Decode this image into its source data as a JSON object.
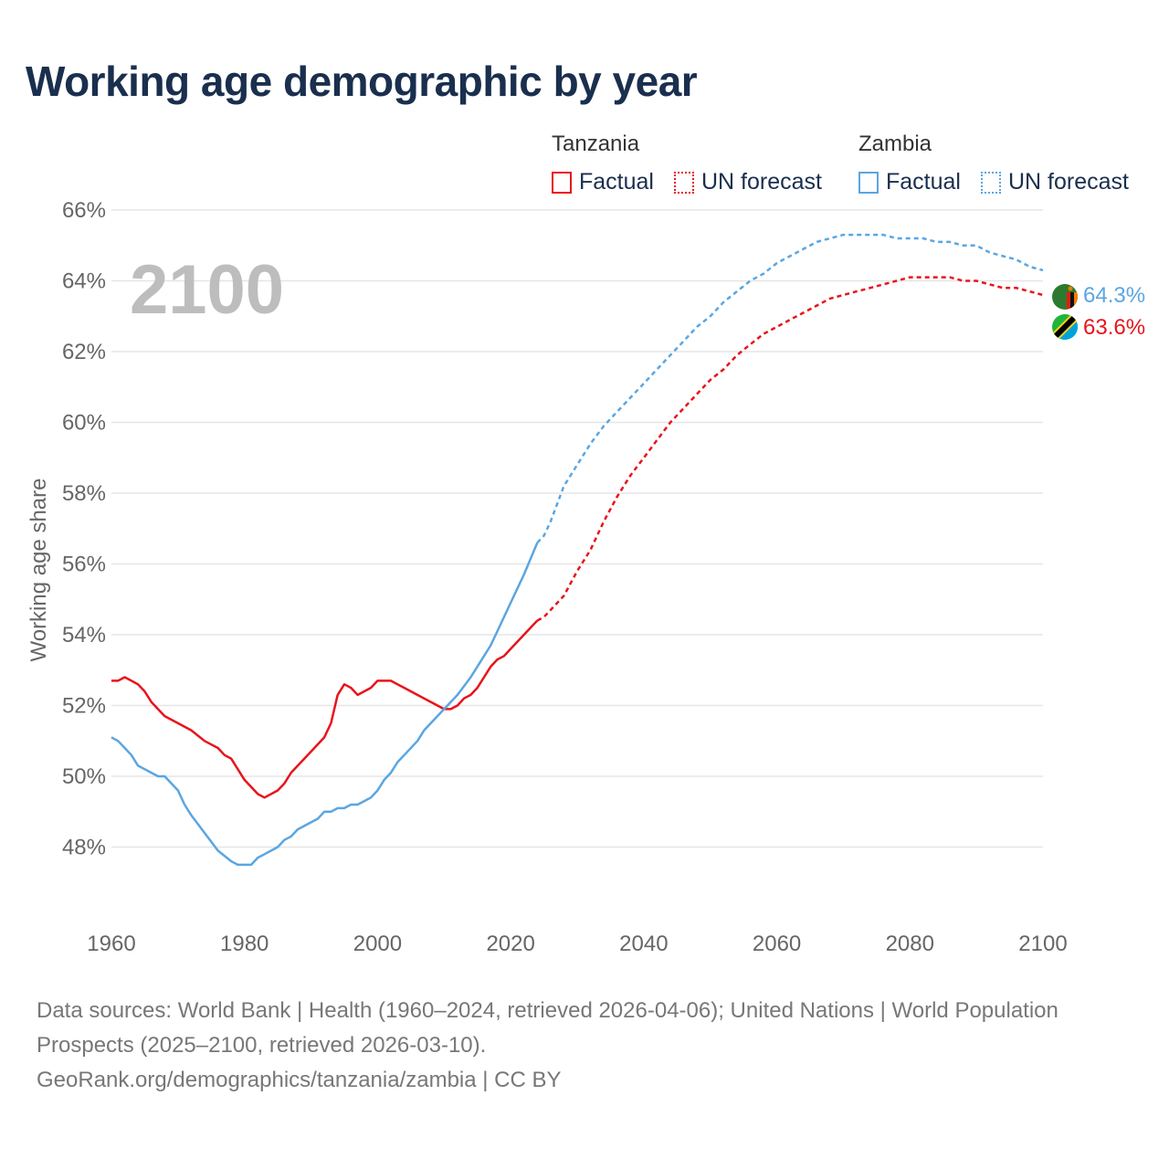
{
  "title": "Working age demographic by year",
  "legend": {
    "groups": [
      {
        "country": "Tanzania",
        "factual": "Factual",
        "forecast": "UN forecast",
        "color": "#e8141b"
      },
      {
        "country": "Zambia",
        "factual": "Factual",
        "forecast": "UN forecast",
        "color": "#5aa6e2"
      }
    ]
  },
  "footer": {
    "sources": "Data sources: World Bank | Health (1960–2024, retrieved 2026-04-06); United Nations | World Population Prospects (2025–2100, retrieved 2026-03-10).",
    "credit": "GeoRank.org/demographics/tanzania/zambia | CC BY"
  },
  "chart_data": {
    "type": "line",
    "title": "Working age demographic by year",
    "xlabel": "",
    "ylabel": "Working age share",
    "year_label": "2100",
    "xlim": [
      1960,
      2100
    ],
    "ylim": [
      46,
      66
    ],
    "x_ticks": [
      "1960",
      "1980",
      "2000",
      "2020",
      "2040",
      "2060",
      "2080",
      "2100"
    ],
    "y_ticks": [
      "48%",
      "50%",
      "52%",
      "54%",
      "56%",
      "58%",
      "60%",
      "62%",
      "64%",
      "66%"
    ],
    "grid": true,
    "series": [
      {
        "name": "Tanzania",
        "color": "#e8141b",
        "end_label": "63.6%",
        "flag": "tanzania-flag",
        "factual": {
          "x": [
            1960,
            1961,
            1962,
            1963,
            1964,
            1965,
            1966,
            1968,
            1970,
            1972,
            1974,
            1976,
            1977,
            1978,
            1980,
            1982,
            1983,
            1985,
            1986,
            1987,
            1988,
            1990,
            1992,
            1993,
            1994,
            1995,
            1996,
            1997,
            1998,
            1999,
            2000,
            2001,
            2002,
            2003,
            2004,
            2006,
            2008,
            2010,
            2011,
            2012,
            2013,
            2014,
            2015,
            2016,
            2017,
            2018,
            2019,
            2020,
            2022,
            2024
          ],
          "y": [
            52.7,
            52.7,
            52.8,
            52.7,
            52.6,
            52.4,
            52.1,
            51.7,
            51.5,
            51.3,
            51.0,
            50.8,
            50.6,
            50.5,
            49.9,
            49.5,
            49.4,
            49.6,
            49.8,
            50.1,
            50.3,
            50.7,
            51.1,
            51.5,
            52.3,
            52.6,
            52.5,
            52.3,
            52.4,
            52.5,
            52.7,
            52.7,
            52.7,
            52.6,
            52.5,
            52.3,
            52.1,
            51.9,
            51.9,
            52.0,
            52.2,
            52.3,
            52.5,
            52.8,
            53.1,
            53.3,
            53.4,
            53.6,
            54.0,
            54.4
          ]
        },
        "forecast": {
          "x": [
            2024,
            2025,
            2026,
            2028,
            2030,
            2032,
            2034,
            2036,
            2038,
            2040,
            2042,
            2044,
            2046,
            2048,
            2050,
            2052,
            2054,
            2056,
            2058,
            2060,
            2062,
            2064,
            2066,
            2068,
            2070,
            2072,
            2074,
            2076,
            2078,
            2080,
            2082,
            2084,
            2086,
            2088,
            2090,
            2092,
            2094,
            2096,
            2098,
            2100
          ],
          "y": [
            54.4,
            54.5,
            54.7,
            55.1,
            55.8,
            56.4,
            57.2,
            57.9,
            58.5,
            59.0,
            59.5,
            60.0,
            60.4,
            60.8,
            61.2,
            61.5,
            61.9,
            62.2,
            62.5,
            62.7,
            62.9,
            63.1,
            63.3,
            63.5,
            63.6,
            63.7,
            63.8,
            63.9,
            64.0,
            64.1,
            64.1,
            64.1,
            64.1,
            64.0,
            64.0,
            63.9,
            63.8,
            63.8,
            63.7,
            63.6
          ]
        }
      },
      {
        "name": "Zambia",
        "color": "#5aa6e2",
        "end_label": "64.3%",
        "flag": "zambia-flag",
        "factual": {
          "x": [
            1960,
            1961,
            1962,
            1963,
            1964,
            1965,
            1966,
            1967,
            1968,
            1970,
            1971,
            1972,
            1974,
            1976,
            1978,
            1979,
            1980,
            1981,
            1982,
            1983,
            1984,
            1985,
            1986,
            1987,
            1988,
            1990,
            1991,
            1992,
            1993,
            1994,
            1995,
            1996,
            1997,
            1998,
            1999,
            2000,
            2001,
            2002,
            2003,
            2004,
            2006,
            2007,
            2008,
            2010,
            2012,
            2014,
            2016,
            2017,
            2018,
            2020,
            2022,
            2024
          ],
          "y": [
            51.1,
            51.0,
            50.8,
            50.6,
            50.3,
            50.2,
            50.1,
            50.0,
            50.0,
            49.6,
            49.2,
            48.9,
            48.4,
            47.9,
            47.6,
            47.5,
            47.5,
            47.5,
            47.7,
            47.8,
            47.9,
            48.0,
            48.2,
            48.3,
            48.5,
            48.7,
            48.8,
            49.0,
            49.0,
            49.1,
            49.1,
            49.2,
            49.2,
            49.3,
            49.4,
            49.6,
            49.9,
            50.1,
            50.4,
            50.6,
            51.0,
            51.3,
            51.5,
            51.9,
            52.3,
            52.8,
            53.4,
            53.7,
            54.1,
            54.9,
            55.7,
            56.6
          ]
        },
        "forecast": {
          "x": [
            2024,
            2025,
            2026,
            2028,
            2030,
            2032,
            2034,
            2036,
            2038,
            2040,
            2042,
            2044,
            2046,
            2048,
            2050,
            2052,
            2054,
            2056,
            2058,
            2060,
            2062,
            2064,
            2066,
            2068,
            2070,
            2072,
            2074,
            2076,
            2078,
            2080,
            2082,
            2084,
            2086,
            2088,
            2090,
            2092,
            2094,
            2096,
            2098,
            2100
          ],
          "y": [
            56.6,
            56.8,
            57.2,
            58.2,
            58.8,
            59.4,
            59.9,
            60.3,
            60.7,
            61.1,
            61.5,
            61.9,
            62.3,
            62.7,
            63.0,
            63.4,
            63.7,
            64.0,
            64.2,
            64.5,
            64.7,
            64.9,
            65.1,
            65.2,
            65.3,
            65.3,
            65.3,
            65.3,
            65.2,
            65.2,
            65.2,
            65.1,
            65.1,
            65.0,
            65.0,
            64.8,
            64.7,
            64.6,
            64.4,
            64.3
          ]
        }
      }
    ]
  }
}
